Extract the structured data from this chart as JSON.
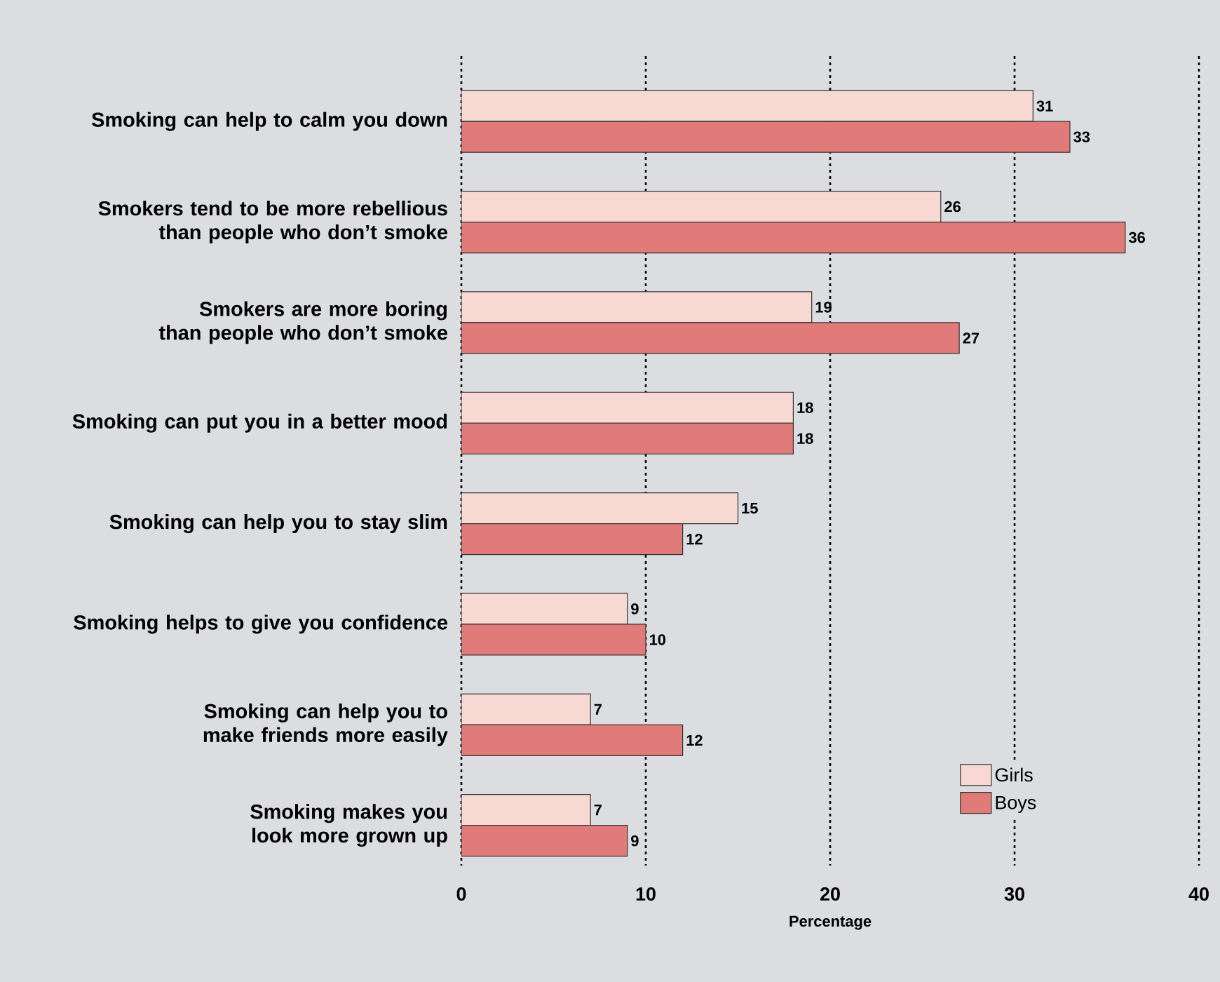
{
  "chart_data": {
    "type": "bar",
    "orientation": "horizontal",
    "xlabel": "Percentage",
    "categories": [
      "Smoking can help to calm you down",
      "Smokers tend to be more rebellious than people who don’t smoke",
      "Smokers are more boring than people who don’t smoke",
      "Smoking can put you in a better mood",
      "Smoking can help you to stay slim",
      "Smoking helps to give you confidence",
      "Smoking can help you to make friends more easily",
      "Smoking makes you look more grown up"
    ],
    "series": [
      {
        "name": "Girls",
        "color": "#f8d8d3",
        "values": [
          31,
          26,
          19,
          18,
          15,
          9,
          7,
          7
        ]
      },
      {
        "name": "Boys",
        "color": "#e07b79",
        "values": [
          33,
          36,
          27,
          18,
          12,
          10,
          12,
          9
        ]
      }
    ],
    "xlim": [
      0,
      40
    ],
    "xticks": [
      0,
      10,
      20,
      30,
      40
    ],
    "grid": "x",
    "legend": "bottom right",
    "data_labels": true
  }
}
